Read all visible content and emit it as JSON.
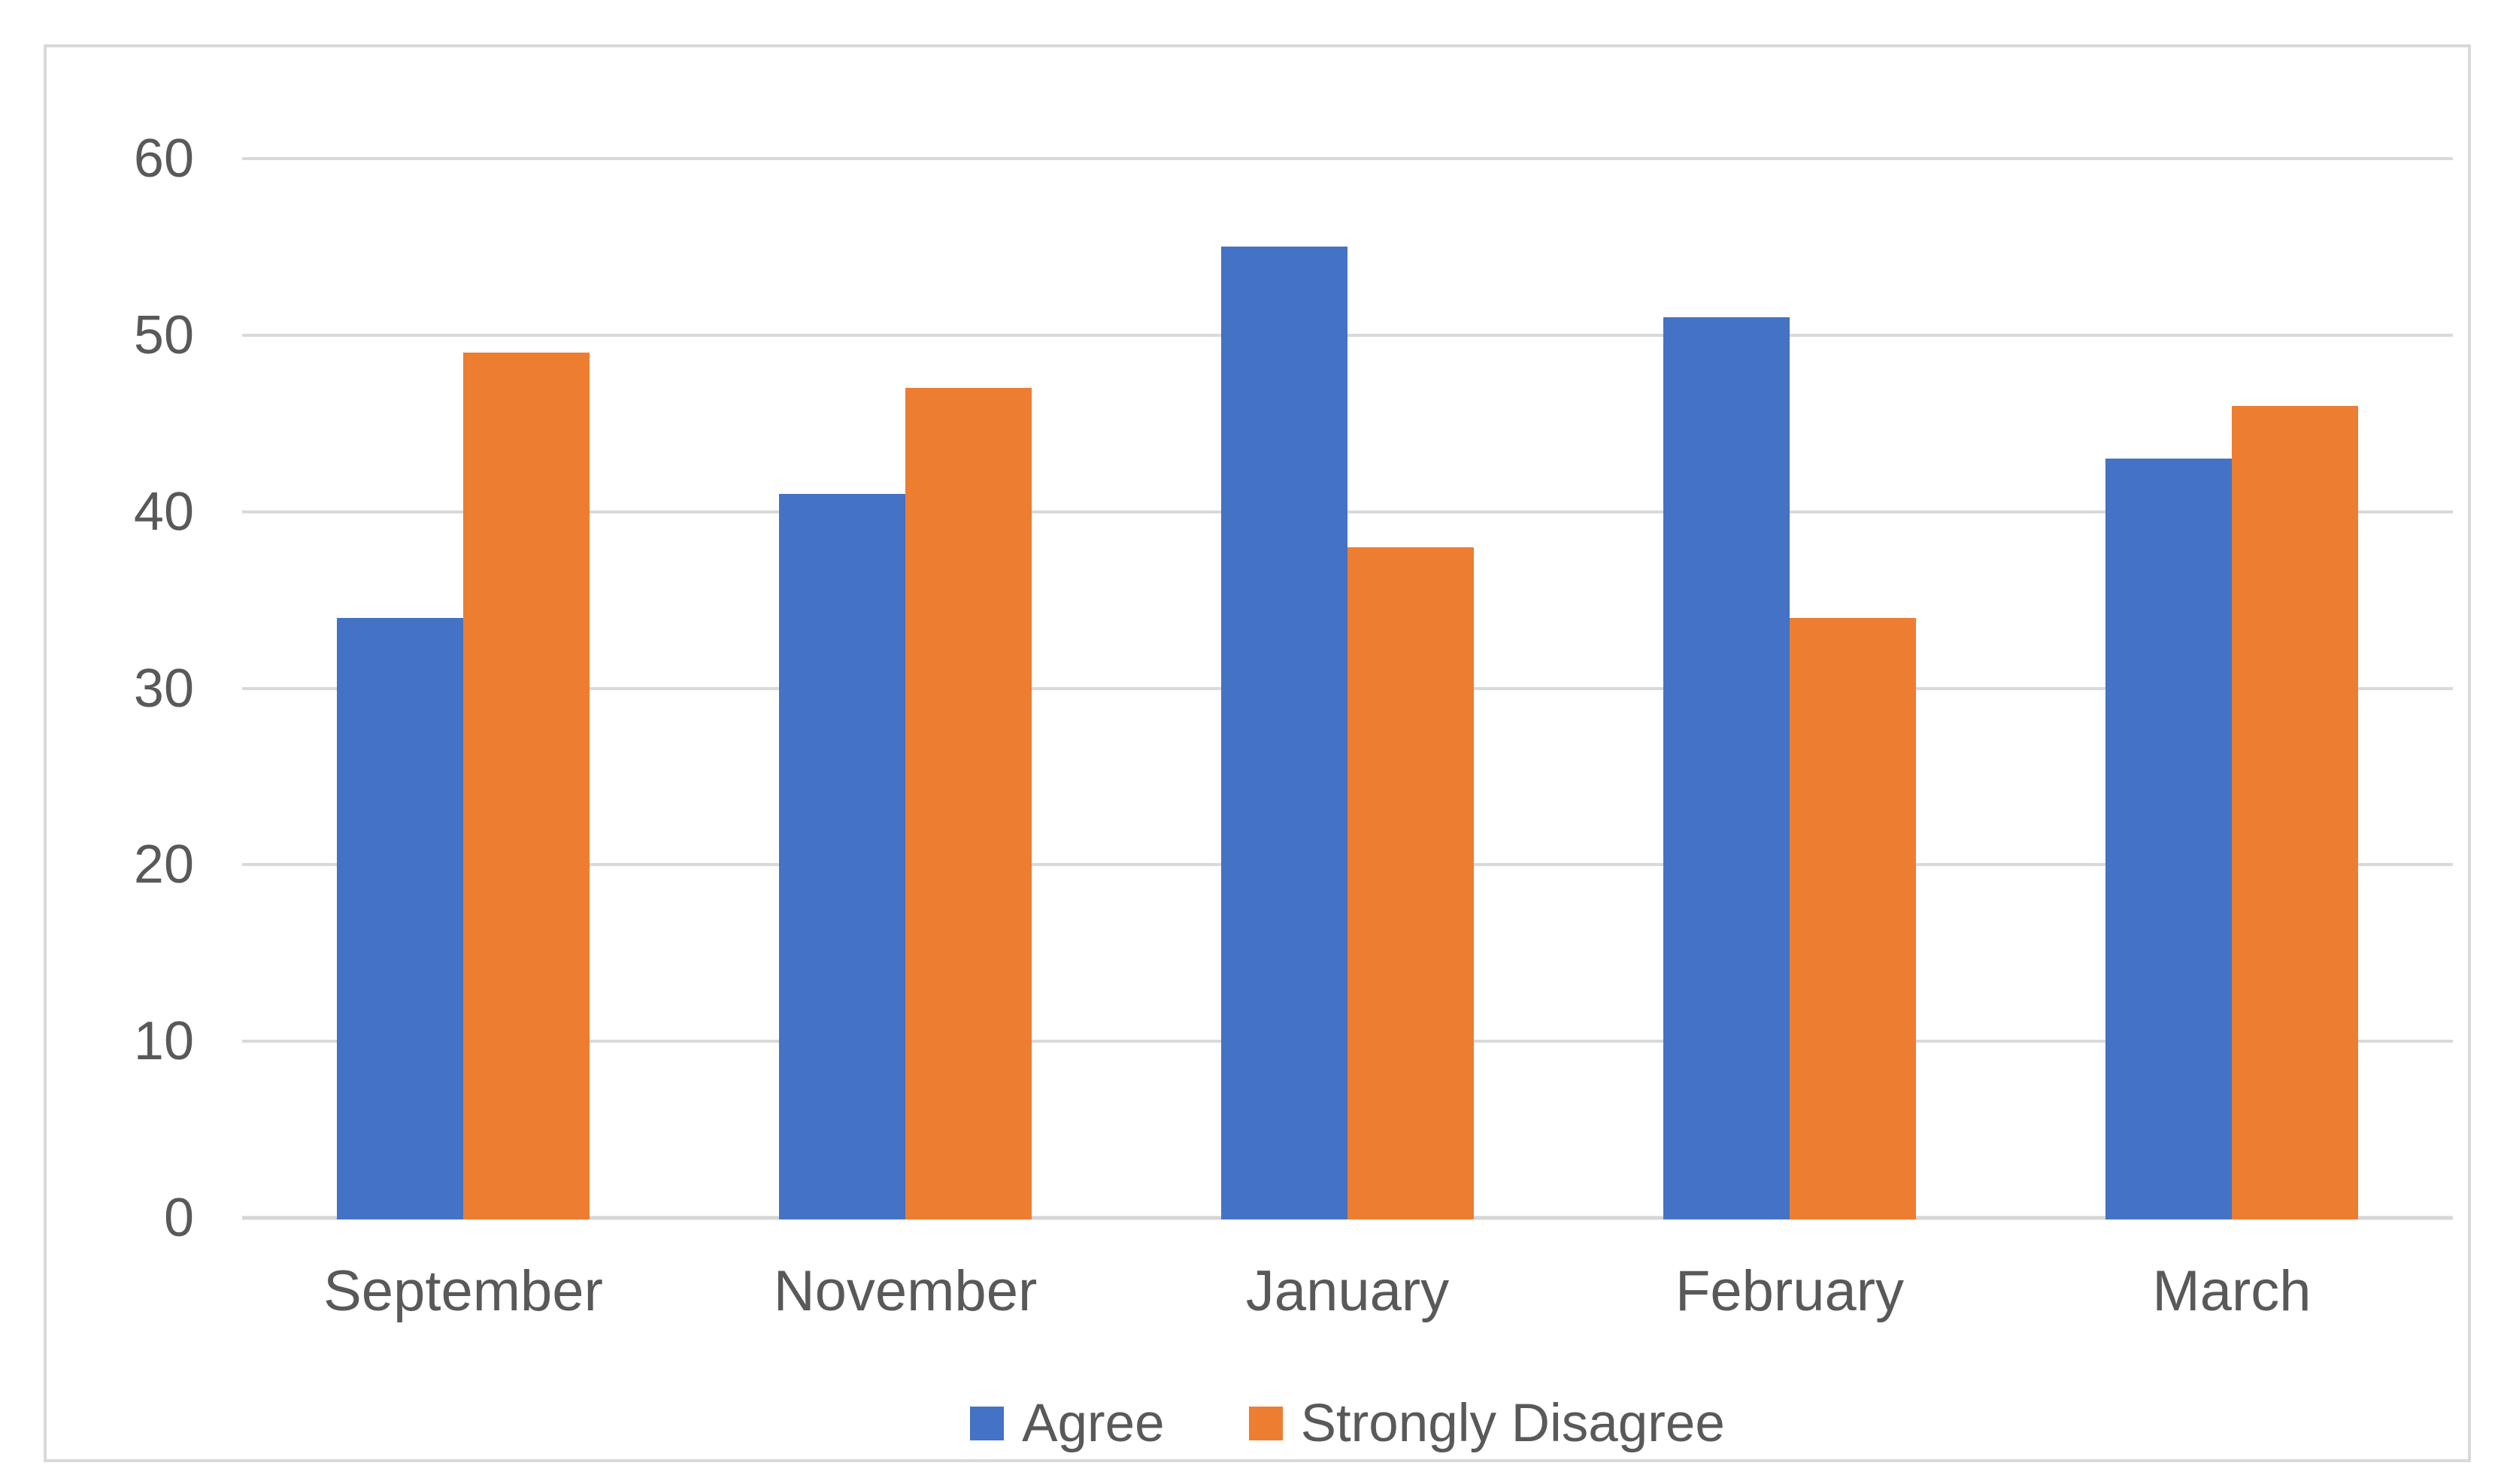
{
  "chart_data": {
    "type": "bar",
    "title": "",
    "xlabel": "",
    "ylabel": "",
    "categories": [
      "September",
      "November",
      "January",
      "February",
      "March"
    ],
    "series": [
      {
        "name": "Agree",
        "color": "#4472C4",
        "values": [
          34,
          41,
          55,
          51,
          43
        ]
      },
      {
        "name": "Strongly Disagree",
        "color": "#ED7D31",
        "values": [
          49,
          47,
          38,
          34,
          46
        ]
      }
    ],
    "ylim": [
      0,
      60
    ],
    "yticks": [
      0,
      10,
      20,
      30,
      40,
      50,
      60
    ],
    "grid": true,
    "legend_position": "bottom-center",
    "colors": {
      "gridline": "#D9D9D9",
      "axis_line": "#D6D6D6",
      "axis_text": "#595959",
      "frame_border": "#D9D9D9",
      "background": "#FFFFFF"
    }
  }
}
